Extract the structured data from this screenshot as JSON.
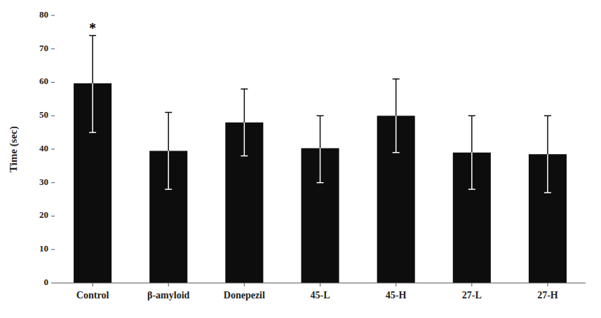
{
  "chart_data": {
    "type": "bar",
    "categories": [
      "Control",
      "β-amyloid",
      "Donepezil",
      "45-L",
      "45-H",
      "27-L",
      "27-H"
    ],
    "values": [
      59.7,
      39.5,
      48.0,
      40.3,
      50.0,
      39.0,
      38.5
    ],
    "errors_upper": [
      14.3,
      11.5,
      10.0,
      9.7,
      11.0,
      11.0,
      11.5
    ],
    "errors_lower": [
      14.7,
      11.5,
      10.0,
      10.3,
      11.0,
      11.0,
      11.5
    ],
    "color": "#0d0d0d",
    "y_label": "Time (sec)",
    "ylim": [
      0,
      80
    ],
    "yticks": [
      0,
      10,
      20,
      30,
      40,
      50,
      60,
      70,
      80
    ],
    "annotations": [
      {
        "text": "*",
        "category": "Control"
      }
    ],
    "grid": false
  }
}
